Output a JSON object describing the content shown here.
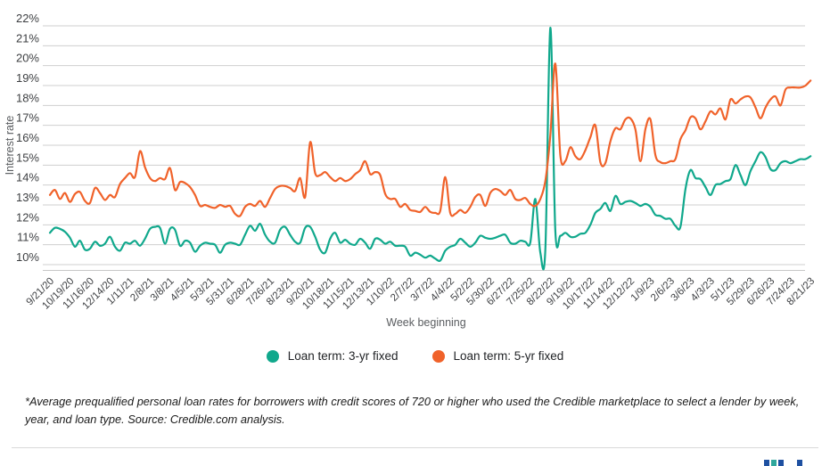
{
  "chart_data": {
    "type": "line",
    "xlabel": "Week beginning",
    "ylabel": "Interest rate",
    "grid": "horizontal",
    "legend_position": "bottom",
    "ylim": [
      9.7,
      22
    ],
    "y_ticks": [
      "22%",
      "21%",
      "20%",
      "19%",
      "18%",
      "17%",
      "16%",
      "15%",
      "14%",
      "13%",
      "12%",
      "11%",
      "10%"
    ],
    "x_tick_labels": [
      "9/21/20",
      "10/19/20",
      "11/16/20",
      "12/14/20",
      "1/11/21",
      "2/8/21",
      "3/8/21",
      "4/5/21",
      "5/3/21",
      "5/31/21",
      "6/28/21",
      "7/26/21",
      "8/23/21",
      "9/20/21",
      "10/18/21",
      "11/15/21",
      "12/13/21",
      "1/10/22",
      "2/7/22",
      "3/7/22",
      "4/4/22",
      "5/2/22",
      "5/30/22",
      "6/27/22",
      "7/25/22",
      "8/22/22",
      "9/19/22",
      "10/17/22",
      "11/14/22",
      "12/12/22",
      "1/9/23",
      "2/6/23",
      "3/6/23",
      "4/3/23",
      "5/1/23",
      "5/29/23",
      "6/26/23",
      "7/24/23",
      "8/21/23"
    ],
    "weeks_per_tick": 4,
    "series": [
      {
        "name": "Loan term: 3-yr fixed",
        "color": "#10A88C",
        "values": [
          11.6,
          11.85,
          11.8,
          11.65,
          11.35,
          10.9,
          11.2,
          10.75,
          10.8,
          11.15,
          10.95,
          11.05,
          11.4,
          10.9,
          10.7,
          11.1,
          11.05,
          11.2,
          10.95,
          11.3,
          11.8,
          11.9,
          11.85,
          11.05,
          11.8,
          11.75,
          10.95,
          11.2,
          11.1,
          10.65,
          10.95,
          11.1,
          11.05,
          11.0,
          10.6,
          11.0,
          11.1,
          11.05,
          11.0,
          11.5,
          11.95,
          11.7,
          12.05,
          11.5,
          11.15,
          11.1,
          11.75,
          11.9,
          11.5,
          11.15,
          11.1,
          11.85,
          11.9,
          11.4,
          10.75,
          10.6,
          11.3,
          11.6,
          11.1,
          11.25,
          11.05,
          11.0,
          11.3,
          11.1,
          10.8,
          11.3,
          11.25,
          11.05,
          11.15,
          10.95,
          10.95,
          10.9,
          10.45,
          10.6,
          10.5,
          10.35,
          10.45,
          10.3,
          10.2,
          10.7,
          10.9,
          11.0,
          11.3,
          11.1,
          10.9,
          11.1,
          11.45,
          11.35,
          11.3,
          11.35,
          11.45,
          11.5,
          11.1,
          11.05,
          11.2,
          11.15,
          11.1,
          13.3,
          10.6,
          10.75,
          21.9,
          11.7,
          11.45,
          11.6,
          11.4,
          11.4,
          11.55,
          11.6,
          12.0,
          12.6,
          12.8,
          13.1,
          12.7,
          13.45,
          13.05,
          13.15,
          13.2,
          13.1,
          12.95,
          13.05,
          12.9,
          12.5,
          12.45,
          12.3,
          12.3,
          11.95,
          11.9,
          13.8,
          14.75,
          14.35,
          14.3,
          13.9,
          13.5,
          14.0,
          14.05,
          14.2,
          14.3,
          15.0,
          14.5,
          14.0,
          14.7,
          15.2,
          15.65,
          15.4,
          14.8,
          14.75,
          15.1,
          15.2,
          15.1,
          15.2,
          15.3,
          15.3,
          15.45
        ]
      },
      {
        "name": "Loan term: 5-yr fixed",
        "color": "#F0622A",
        "values": [
          13.5,
          13.75,
          13.3,
          13.6,
          13.15,
          13.55,
          13.65,
          13.2,
          13.1,
          13.85,
          13.6,
          13.25,
          13.5,
          13.4,
          14.05,
          14.35,
          14.6,
          14.4,
          15.7,
          14.9,
          14.35,
          14.2,
          14.35,
          14.3,
          14.85,
          13.75,
          14.15,
          14.1,
          13.9,
          13.5,
          12.95,
          13.0,
          12.9,
          12.85,
          13.0,
          12.9,
          12.95,
          12.55,
          12.45,
          12.9,
          13.05,
          12.95,
          13.2,
          12.9,
          13.35,
          13.8,
          13.95,
          13.95,
          13.85,
          13.7,
          14.35,
          13.4,
          16.15,
          14.6,
          14.5,
          14.65,
          14.4,
          14.2,
          14.35,
          14.2,
          14.3,
          14.55,
          14.75,
          15.2,
          14.55,
          14.65,
          14.5,
          13.55,
          13.3,
          13.3,
          12.9,
          13.05,
          12.75,
          12.7,
          12.65,
          12.9,
          12.65,
          12.6,
          12.7,
          14.4,
          12.6,
          12.55,
          12.75,
          12.6,
          12.9,
          13.4,
          13.5,
          12.95,
          13.6,
          13.8,
          13.7,
          13.5,
          13.75,
          13.3,
          13.25,
          13.35,
          13.05,
          12.95,
          13.3,
          14.2,
          16.5,
          20.1,
          15.5,
          15.2,
          15.9,
          15.45,
          15.3,
          15.75,
          16.4,
          17.0,
          15.15,
          15.1,
          16.2,
          16.85,
          16.8,
          17.3,
          17.35,
          16.8,
          15.2,
          16.8,
          17.3,
          15.5,
          15.15,
          15.1,
          15.2,
          15.3,
          16.3,
          16.75,
          17.4,
          17.35,
          16.8,
          17.2,
          17.7,
          17.55,
          17.85,
          17.3,
          18.3,
          18.1,
          18.3,
          18.45,
          18.4,
          17.9,
          17.35,
          17.9,
          18.3,
          18.45,
          18.0,
          18.8,
          18.9,
          18.9,
          18.9,
          19.0,
          19.25
        ]
      }
    ]
  },
  "footnote": {
    "text": "*Average prequalified personal loan rates for borrowers with credit scores of 720 or higher who used the Credible marketplace to select a lender by week, year, and loan type. Source: Credible.com analysis."
  },
  "branding": {
    "logo_square_colors": [
      "#1E50A1",
      "#2FA79C",
      "#1E50A1",
      "#1E50A1"
    ]
  }
}
